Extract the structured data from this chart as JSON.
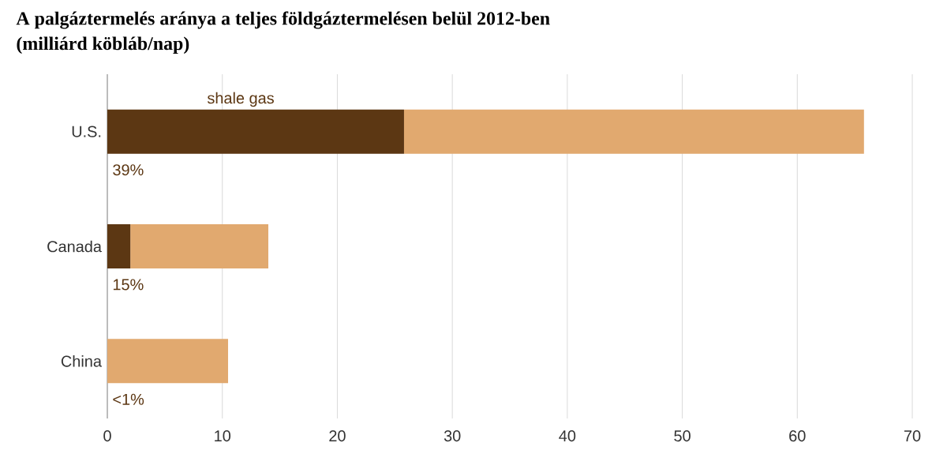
{
  "chart_data": {
    "type": "bar",
    "orientation": "horizontal",
    "stacked": true,
    "title": "A palgáztermelés aránya a teljes földgáztermelésen belül 2012-ben",
    "subtitle": "(milliárd köbláb/nap)",
    "categories": [
      "U.S.",
      "Canada",
      "China"
    ],
    "series": [
      {
        "name": "shale gas",
        "color": "#5c3713",
        "values": [
          25.8,
          2.0,
          null
        ]
      },
      {
        "color": "#e1a96f",
        "values": [
          40.0,
          12.0,
          10.5
        ]
      }
    ],
    "annotations": [
      "39%",
      "15%",
      "<1%"
    ],
    "xlim": [
      0,
      70
    ],
    "xticks": [
      0,
      10,
      20,
      30,
      40,
      50,
      60,
      70
    ],
    "grid": "x",
    "legend": false
  }
}
